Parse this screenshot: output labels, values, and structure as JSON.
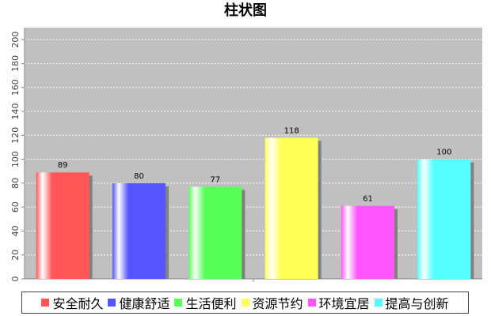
{
  "chart_data": {
    "type": "bar",
    "title": "柱状图",
    "categories": [
      "安全耐久",
      "健康舒适",
      "生活便利",
      "资源节约",
      "环境宜居",
      "提高与创新"
    ],
    "values": [
      89,
      80,
      77,
      118,
      61,
      100
    ],
    "colors": [
      "#ff5555",
      "#5555ff",
      "#55ff55",
      "#ffff55",
      "#ff55ff",
      "#55ffff"
    ],
    "ylim": [
      0,
      210
    ],
    "yticks": [
      0,
      20,
      40,
      60,
      80,
      100,
      120,
      140,
      160,
      180,
      200
    ],
    "grid": true,
    "legend_position": "bottom",
    "plot_background": "#c0c0c0"
  }
}
